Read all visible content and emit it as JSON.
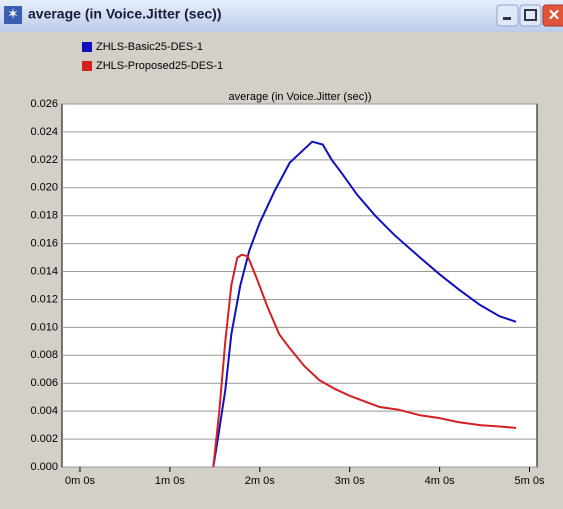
{
  "window_title": "average (in Voice.Jitter (sec))",
  "chart_data": {
    "type": "line",
    "title": "average (in Voice.Jitter (sec))",
    "series": [
      {
        "name": "ZHLS-Basic25-DES-1",
        "color": "#1010c0",
        "x": [
          89,
          92,
          97,
          101,
          107,
          113,
          120,
          130,
          140,
          150,
          155,
          162,
          168,
          175,
          185,
          197,
          210,
          227,
          240,
          253,
          267,
          280,
          291
        ],
        "values": [
          0,
          0.002,
          0.0055,
          0.0095,
          0.013,
          0.0155,
          0.0175,
          0.0198,
          0.0218,
          0.0228,
          0.0233,
          0.0231,
          0.022,
          0.021,
          0.0195,
          0.018,
          0.0166,
          0.015,
          0.0138,
          0.0127,
          0.0116,
          0.0108,
          0.0104
        ]
      },
      {
        "name": "ZHLS-Proposed25-DES-1",
        "color": "#d42020",
        "x": [
          89,
          93,
          97,
          101,
          105,
          108,
          112,
          118,
          125,
          133,
          140,
          150,
          160,
          170,
          180,
          190,
          200,
          213,
          227,
          240,
          253,
          267,
          280,
          291
        ],
        "values": [
          0,
          0.004,
          0.009,
          0.013,
          0.015,
          0.0152,
          0.0151,
          0.0135,
          0.0115,
          0.0095,
          0.0085,
          0.0072,
          0.0062,
          0.0056,
          0.0051,
          0.0047,
          0.0043,
          0.0041,
          0.0037,
          0.0035,
          0.0032,
          0.003,
          0.0029,
          0.0028
        ]
      }
    ],
    "xlim": [
      -12,
      305
    ],
    "xticks": [
      {
        "value": 0,
        "label": "0m 0s"
      },
      {
        "value": 60,
        "label": "1m 0s"
      },
      {
        "value": 120,
        "label": "2m 0s"
      },
      {
        "value": 180,
        "label": "3m 0s"
      },
      {
        "value": 240,
        "label": "4m 0s"
      },
      {
        "value": 300,
        "label": "5m 0s"
      }
    ],
    "ylim": [
      0,
      0.026
    ],
    "yticks": [
      {
        "value": 0,
        "label": "0.000"
      },
      {
        "value": 0.002,
        "label": "0.002"
      },
      {
        "value": 0.004,
        "label": "0.004"
      },
      {
        "value": 0.006,
        "label": "0.006"
      },
      {
        "value": 0.008,
        "label": "0.008"
      },
      {
        "value": 0.01,
        "label": "0.010"
      },
      {
        "value": 0.012,
        "label": "0.012"
      },
      {
        "value": 0.014,
        "label": "0.014"
      },
      {
        "value": 0.016,
        "label": "0.016"
      },
      {
        "value": 0.018,
        "label": "0.018"
      },
      {
        "value": 0.02,
        "label": "0.020"
      },
      {
        "value": 0.022,
        "label": "0.022"
      },
      {
        "value": 0.024,
        "label": "0.024"
      },
      {
        "value": 0.026,
        "label": "0.026"
      }
    ],
    "grid": true
  }
}
